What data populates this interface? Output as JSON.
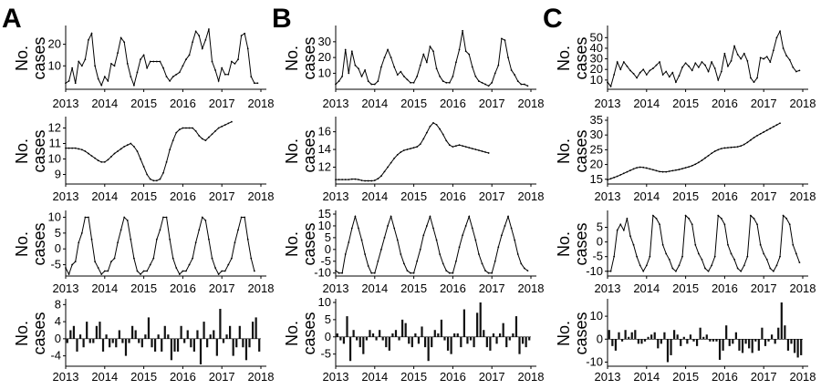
{
  "panel_letters": [
    "A",
    "B",
    "C"
  ],
  "chart_data": [
    {
      "id": "A1",
      "panel": "A",
      "type": "line",
      "ylabel": "No. cases",
      "ylim": [
        0,
        27
      ],
      "yticks": [
        10,
        20
      ],
      "xticks": [
        "2013",
        "2014",
        "2015",
        "2016",
        "2017",
        "2018"
      ],
      "xlim": [
        2013,
        2018
      ],
      "grid": false,
      "x_start": 2013,
      "x_step": 0.08333,
      "values": [
        2,
        3,
        9,
        2,
        12,
        10,
        13,
        22,
        25,
        10,
        4,
        1,
        5,
        3,
        11,
        10,
        16,
        23,
        21,
        11,
        5,
        1,
        7,
        13,
        15,
        9,
        12,
        12,
        12,
        12,
        9,
        5,
        3,
        5,
        6,
        7,
        10,
        13,
        15,
        21,
        26,
        24,
        18,
        22,
        27,
        12,
        8,
        3,
        9,
        6,
        6,
        12,
        11,
        13,
        24,
        25,
        18,
        5,
        2,
        2
      ]
    },
    {
      "id": "A2",
      "panel": "A",
      "type": "line",
      "ylabel": "No. cases",
      "ylim": [
        8.5,
        12.5
      ],
      "yticks": [
        9,
        10,
        11,
        12
      ],
      "xticks": [
        "2013",
        "2014",
        "2015",
        "2016",
        "2017",
        "2018"
      ],
      "xlim": [
        2013,
        2018
      ],
      "grid": false,
      "x_start": 2013,
      "x_step": 0.08333,
      "values": [
        10.7,
        10.7,
        10.7,
        10.7,
        10.65,
        10.6,
        10.5,
        10.35,
        10.2,
        10.05,
        9.9,
        9.8,
        9.8,
        9.95,
        10.15,
        10.35,
        10.5,
        10.65,
        10.8,
        10.9,
        11.0,
        10.8,
        10.5,
        10.0,
        9.5,
        9.0,
        8.7,
        8.6,
        8.6,
        8.7,
        9.1,
        9.8,
        10.6,
        11.2,
        11.7,
        11.9,
        12.0,
        12.0,
        12.0,
        12.0,
        11.8,
        11.5,
        11.3,
        11.2,
        11.4,
        11.6,
        11.8,
        12.0,
        12.1,
        12.2,
        12.3,
        12.4
      ]
    },
    {
      "id": "A3",
      "panel": "A",
      "type": "line",
      "ylabel": "No. cases",
      "ylim": [
        -8,
        11
      ],
      "yticks": [
        -5,
        0,
        5,
        10
      ],
      "xticks": [
        "2013",
        "2014",
        "2015",
        "2016",
        "2017",
        "2018"
      ],
      "xlim": [
        2013,
        2018
      ],
      "grid": false,
      "x_start": 2013,
      "x_step": 0.08333,
      "values": [
        -6,
        -8,
        -5,
        -4,
        2,
        5,
        10,
        10,
        3,
        -4,
        -6,
        -8,
        -7,
        -7,
        -4,
        -3,
        2,
        6,
        10,
        9,
        3,
        -3,
        -7,
        -8,
        -7,
        -7,
        -5,
        -3,
        3,
        6,
        10,
        10,
        3,
        -3,
        -6,
        -8,
        -7,
        -7,
        -5,
        -3,
        2,
        6,
        10,
        9,
        3,
        -3,
        -6,
        -8,
        -7,
        -7,
        -5,
        -3,
        2,
        6,
        10,
        10,
        3,
        -3,
        -7
      ]
    },
    {
      "id": "A4",
      "panel": "A",
      "type": "bar",
      "ylabel": "No. cases",
      "ylim": [
        -6,
        8.5
      ],
      "yticks": [
        -4,
        0,
        4,
        8
      ],
      "xticks": [
        "2013",
        "2014",
        "2015",
        "2016",
        "2017",
        "2018"
      ],
      "xlim": [
        2013,
        2018
      ],
      "grid": false,
      "x_start": 2013,
      "x_step": 0.08333,
      "values": [
        -1,
        2,
        3,
        -3,
        1,
        -2,
        4,
        -1,
        -1,
        3,
        4,
        -3,
        1,
        -2,
        -1,
        -2,
        2,
        -1,
        -4,
        -1,
        3,
        2,
        -1,
        -2,
        1,
        5,
        -2,
        -3,
        1,
        -3,
        3,
        1,
        -5,
        -3,
        -3,
        3,
        -1,
        2,
        -2,
        -3,
        2,
        -6,
        4,
        -2,
        1,
        2,
        -4,
        7,
        -1,
        1,
        3,
        -4,
        -2,
        3,
        -2,
        -5,
        -2,
        4,
        5,
        -3
      ]
    },
    {
      "id": "B1",
      "panel": "B",
      "type": "line",
      "ylabel": "No. cases",
      "ylim": [
        1,
        38
      ],
      "yticks": [
        10,
        20,
        30
      ],
      "xticks": [
        "2013",
        "2014",
        "2015",
        "2016",
        "2017",
        "2018"
      ],
      "xlim": [
        2013,
        2018
      ],
      "grid": false,
      "x_start": 2013,
      "x_step": 0.08333,
      "values": [
        3,
        5,
        8,
        25,
        10,
        24,
        15,
        13,
        8,
        12,
        5,
        3,
        3,
        5,
        14,
        20,
        25,
        20,
        14,
        9,
        11,
        8,
        6,
        4,
        4,
        8,
        15,
        22,
        17,
        27,
        24,
        13,
        8,
        5,
        4,
        4,
        8,
        17,
        25,
        37,
        24,
        22,
        14,
        8,
        5,
        4,
        3,
        2,
        4,
        10,
        15,
        32,
        31,
        20,
        12,
        9,
        5,
        3,
        3,
        2
      ]
    },
    {
      "id": "B2",
      "panel": "B",
      "type": "line",
      "ylabel": "No. cases",
      "ylim": [
        10.3,
        17.3
      ],
      "yticks": [
        12,
        14,
        16
      ],
      "xticks": [
        "2013",
        "2014",
        "2015",
        "2016",
        "2017",
        "2018"
      ],
      "xlim": [
        2013,
        2018
      ],
      "grid": false,
      "x_start": 2013,
      "x_step": 0.08333,
      "values": [
        10.6,
        10.6,
        10.6,
        10.6,
        10.6,
        10.65,
        10.65,
        10.6,
        10.5,
        10.45,
        10.45,
        10.45,
        10.5,
        10.7,
        11.0,
        11.5,
        12.0,
        12.5,
        13.0,
        13.4,
        13.7,
        13.9,
        14.0,
        14.1,
        14.2,
        14.3,
        14.6,
        15.2,
        15.9,
        16.6,
        17.0,
        16.8,
        16.3,
        15.7,
        15.0,
        14.5,
        14.3,
        14.4,
        14.5,
        14.4,
        14.3,
        14.2,
        14.1,
        14.0,
        13.9,
        13.8,
        13.7,
        13.6
      ]
    },
    {
      "id": "B3",
      "panel": "B",
      "type": "line",
      "ylabel": "No. cases",
      "ylim": [
        -10.5,
        15
      ],
      "yticks": [
        -10,
        -5,
        0,
        5,
        10,
        15
      ],
      "xticks": [
        "2013",
        "2014",
        "2015",
        "2016",
        "2017",
        "2018"
      ],
      "xlim": [
        2013,
        2018
      ],
      "grid": false,
      "x_start": 2013,
      "x_step": 0.08333,
      "values": [
        -9,
        -10,
        -10,
        -2,
        3,
        9,
        14,
        9,
        4,
        -2,
        -7,
        -10,
        -10,
        -5,
        0,
        5,
        10,
        14,
        9,
        4,
        -2,
        -6,
        -9,
        -10,
        -10,
        -5,
        0,
        6,
        10,
        14,
        9,
        4,
        -2,
        -6,
        -9,
        -10,
        -10,
        -5,
        1,
        6,
        10,
        14,
        9,
        4,
        -2,
        -6,
        -9,
        -10,
        -10,
        -5,
        1,
        6,
        10,
        14,
        9,
        4,
        -2,
        -6,
        -8,
        -9
      ]
    },
    {
      "id": "B4",
      "panel": "B",
      "type": "bar",
      "ylabel": "No. cases",
      "ylim": [
        -8,
        10
      ],
      "yticks": [
        -5,
        0,
        5,
        10
      ],
      "xticks": [
        "2013",
        "2014",
        "2015",
        "2016",
        "2017",
        "2018"
      ],
      "xlim": [
        2013,
        2018
      ],
      "grid": false,
      "x_start": 2013,
      "x_step": 0.08333,
      "values": [
        1,
        -1,
        -2,
        6,
        -7,
        2,
        -1,
        -3,
        -5,
        -1,
        2,
        1,
        -1,
        2,
        -1,
        -3,
        -4,
        1,
        2,
        -1,
        5,
        4,
        -2,
        -3,
        1,
        -2,
        3,
        -3,
        -7,
        -3,
        2,
        1,
        5,
        -1,
        -4,
        -5,
        1,
        1,
        -3,
        8,
        -2,
        -1,
        -3,
        7,
        10,
        2,
        -3,
        -4,
        1,
        -2,
        1,
        4,
        -3,
        -1,
        1,
        6,
        -5,
        -2,
        -3,
        -1
      ]
    },
    {
      "id": "C1",
      "panel": "C",
      "type": "line",
      "ylabel": "No. cases",
      "ylim": [
        3,
        58
      ],
      "yticks": [
        10,
        20,
        30,
        40,
        50
      ],
      "xticks": [
        "2013",
        "2014",
        "2015",
        "2016",
        "2017",
        "2018"
      ],
      "xlim": [
        2013,
        2018
      ],
      "grid": false,
      "x_start": 2013,
      "x_step": 0.08333,
      "values": [
        8,
        4,
        15,
        27,
        20,
        27,
        23,
        19,
        16,
        12,
        17,
        20,
        15,
        19,
        21,
        24,
        27,
        15,
        18,
        13,
        17,
        8,
        14,
        22,
        26,
        23,
        19,
        26,
        22,
        27,
        24,
        18,
        27,
        21,
        10,
        18,
        35,
        23,
        28,
        42,
        34,
        30,
        35,
        28,
        12,
        8,
        12,
        31,
        30,
        32,
        27,
        38,
        50,
        56,
        40,
        33,
        29,
        22,
        18,
        19
      ]
    },
    {
      "id": "C2",
      "panel": "C",
      "type": "line",
      "ylabel": "No. cases",
      "ylim": [
        14,
        35
      ],
      "yticks": [
        15,
        20,
        25,
        30,
        35
      ],
      "xticks": [
        "2013",
        "2014",
        "2015",
        "2016",
        "2017",
        "2018"
      ],
      "xlim": [
        2013,
        2018
      ],
      "grid": false,
      "x_start": 2013,
      "x_step": 0.08333,
      "values": [
        14.8,
        15.2,
        15.6,
        16.0,
        16.5,
        17.0,
        17.5,
        18.0,
        18.5,
        18.9,
        19.1,
        19.0,
        18.8,
        18.5,
        18.2,
        17.9,
        17.6,
        17.5,
        17.5,
        17.7,
        17.9,
        18.1,
        18.3,
        18.6,
        18.9,
        19.2,
        19.6,
        20.1,
        20.7,
        21.4,
        22.2,
        23.0,
        23.8,
        24.5,
        25.0,
        25.4,
        25.6,
        25.7,
        25.8,
        25.9,
        26.0,
        26.3,
        26.8,
        27.5,
        28.3,
        29.1,
        29.8,
        30.4,
        31.0,
        31.6,
        32.2,
        32.8,
        33.4,
        34.0
      ]
    },
    {
      "id": "C3",
      "panel": "C",
      "type": "line",
      "ylabel": "No. cases",
      "ylim": [
        -11,
        9.5
      ],
      "yticks": [
        -10,
        -5,
        0,
        5
      ],
      "xticks": [
        "2013",
        "2014",
        "2015",
        "2016",
        "2017",
        "2018"
      ],
      "xlim": [
        2013,
        2018
      ],
      "grid": false,
      "x_start": 2013,
      "x_step": 0.08333,
      "values": [
        -10,
        -10,
        -5,
        4,
        6,
        4,
        8,
        2,
        -1,
        -5,
        -8,
        -10,
        -8,
        -5,
        9,
        8,
        6,
        -1,
        -4,
        -6,
        -9,
        -10,
        -8,
        -5,
        9,
        8,
        6,
        -1,
        -4,
        -6,
        -9,
        -10,
        -8,
        -5,
        9,
        8,
        6,
        -1,
        -4,
        -6,
        -9,
        -10,
        -8,
        -5,
        9,
        8,
        6,
        -1,
        -4,
        -6,
        -9,
        -10,
        -8,
        -5,
        9,
        8,
        6,
        -1,
        -4,
        -7
      ]
    },
    {
      "id": "C4",
      "panel": "C",
      "type": "bar",
      "ylabel": "No. cases",
      "ylim": [
        -11,
        16
      ],
      "yticks": [
        -10,
        0,
        10
      ],
      "xticks": [
        "2013",
        "2014",
        "2015",
        "2016",
        "2017",
        "2018"
      ],
      "xlim": [
        2013,
        2018
      ],
      "grid": false,
      "x_start": 2013,
      "x_step": 0.08333,
      "values": [
        4,
        -3,
        -5,
        3,
        -1,
        4,
        1,
        3,
        4,
        -2,
        -2,
        -1,
        1,
        2,
        3,
        -4,
        -2,
        3,
        -10,
        -7,
        4,
        2,
        -3,
        1,
        -2,
        2,
        -1,
        -3,
        5,
        1,
        2,
        -1,
        -1,
        -1,
        -9,
        -5,
        6,
        -3,
        -2,
        3,
        -5,
        -6,
        -2,
        -4,
        -6,
        -1,
        -5,
        5,
        -3,
        -1,
        2,
        -2,
        5,
        16,
        6,
        -5,
        -2,
        -6,
        -8,
        -7
      ]
    }
  ]
}
